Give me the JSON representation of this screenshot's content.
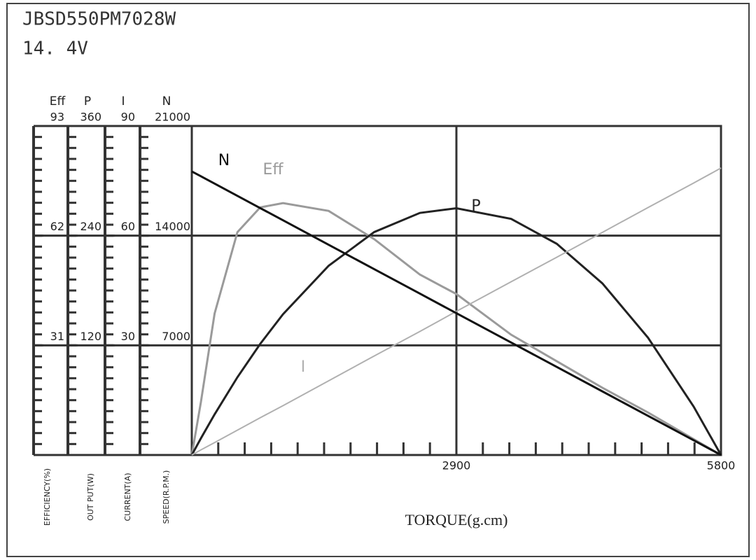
{
  "title": "JBSD550PM7028W",
  "subtitle": "14. 4V",
  "chart_data": {
    "type": "line",
    "xlabel": "TORQUE(g.cm)",
    "xlim": [
      0,
      5800
    ],
    "xticks": [
      2900,
      5800
    ],
    "grid": true,
    "x": [
      0,
      100,
      250,
      500,
      750,
      1000,
      1500,
      2000,
      2500,
      2900,
      3500,
      4000,
      4500,
      5000,
      5500,
      5800
    ],
    "y_axes": [
      {
        "name": "Eff",
        "label": "EFFICIENCY(%)",
        "color": "#9a9a9a",
        "ylim": [
          0,
          93
        ],
        "yticks": [
          31,
          62,
          93
        ],
        "values": [
          0,
          15,
          40,
          63,
          70,
          71.2,
          69,
          61,
          51,
          45.5,
          34,
          26.5,
          19,
          12,
          4.5,
          0
        ]
      },
      {
        "name": "P",
        "label": "OUT PUT(W)",
        "color": "#222222",
        "ylim": [
          0,
          360
        ],
        "yticks": [
          120,
          240,
          360
        ],
        "values": [
          0,
          18.3,
          44.5,
          85.1,
          121.6,
          154.1,
          207.1,
          244,
          264.9,
          270,
          258.4,
          231.1,
          187.8,
          128.4,
          53,
          0
        ]
      },
      {
        "name": "I",
        "label": "CURRENT(A)",
        "color": "#b0b0b0",
        "ylim": [
          0,
          90
        ],
        "yticks": [
          30,
          60,
          90
        ],
        "values": [
          0,
          1.4,
          3.4,
          6.8,
          10.2,
          13.5,
          20.3,
          27.1,
          33.8,
          39.3,
          47.4,
          54.1,
          60.9,
          67.7,
          74.4,
          78.5
        ]
      },
      {
        "name": "N",
        "label": "SPEED(R.P.M.)",
        "color": "#111111",
        "ylim": [
          0,
          21000
        ],
        "yticks": [
          7000,
          14000,
          21000
        ],
        "values": [
          18100,
          17790,
          17320,
          16540,
          15760,
          14980,
          13420,
          11860,
          10300,
          9050,
          7180,
          5620,
          4060,
          2500,
          940,
          0
        ]
      }
    ]
  }
}
